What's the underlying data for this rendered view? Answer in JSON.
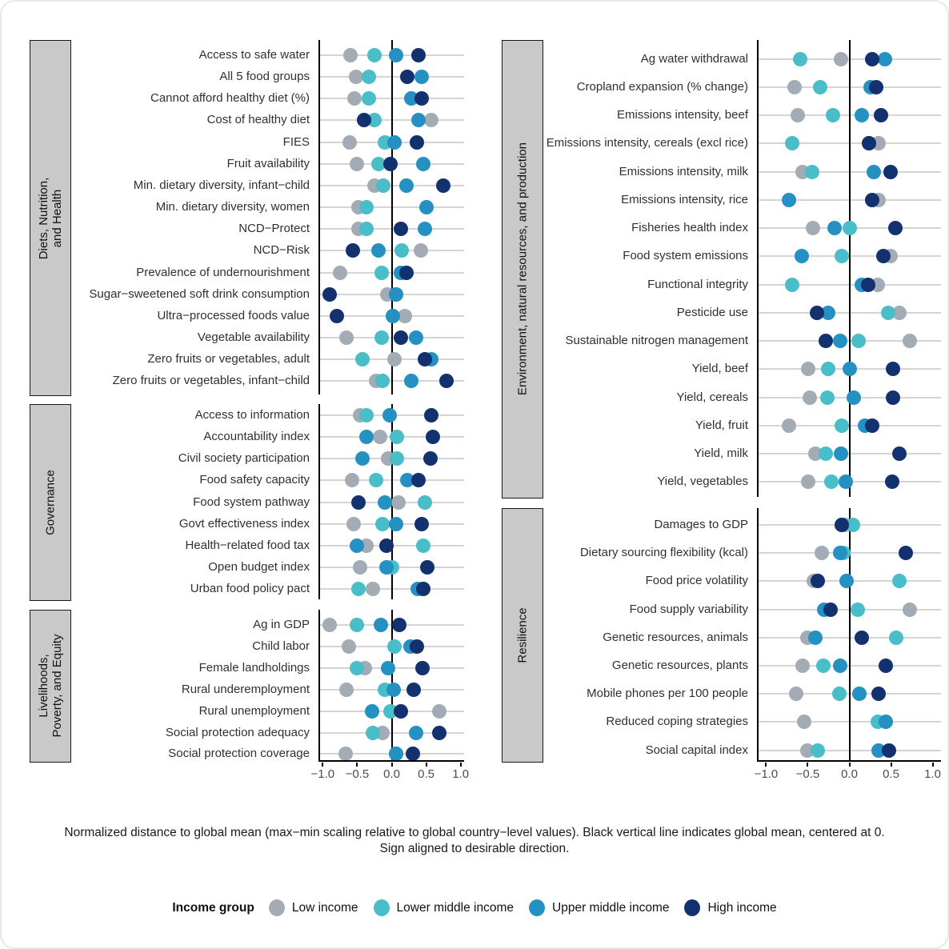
{
  "caption": {
    "line1": "Normalized distance to global mean (max−min scaling relative to global country−level values). Black vertical line indicates global mean, centered at 0.",
    "line2": "Sign aligned to desirable direction."
  },
  "legend": {
    "title": "Income group",
    "items": [
      {
        "key": "low",
        "label": "Low income",
        "color": "#a3abb4"
      },
      {
        "key": "lower_middle",
        "label": "Lower middle income",
        "color": "#49bdc8"
      },
      {
        "key": "upper_middle",
        "label": "Upper middle income",
        "color": "#2590c2"
      },
      {
        "key": "high",
        "label": "High income",
        "color": "#13316f"
      }
    ]
  },
  "series_order": [
    "low",
    "lower_middle",
    "upper_middle",
    "high"
  ],
  "axis": {
    "tick_values": [
      -1.0,
      -0.5,
      0.0,
      0.5,
      1.0
    ],
    "tick_labels": [
      "−1.0",
      "−0.5",
      "0.0",
      "0.5",
      "1.0"
    ]
  },
  "chart_data": {
    "type": "scatter",
    "subtype": "grouped-dot-plot",
    "x_domain": [
      -1.05,
      1.05
    ],
    "grid": "horizontal-row-lines",
    "zero_line": "black vertical at 0 per panel",
    "panels": [
      {
        "category_lines": [
          "Diets, Nutrition,",
          "and Health"
        ],
        "category": "Diets, Nutrition, and Health",
        "rows": [
          {
            "label": "Access to safe water",
            "low": -0.6,
            "lower_middle": -0.25,
            "upper_middle": 0.06,
            "high": 0.39
          },
          {
            "label": "All 5 food groups",
            "low": -0.52,
            "lower_middle": -0.33,
            "upper_middle": 0.44,
            "high": 0.23
          },
          {
            "label": "Cannot afford healthy diet (%)",
            "low": -0.54,
            "lower_middle": -0.33,
            "upper_middle": 0.29,
            "high": 0.44
          },
          {
            "label": "Cost of healthy diet",
            "low": 0.58,
            "lower_middle": -0.25,
            "upper_middle": 0.39,
            "high": -0.4
          },
          {
            "label": "FIES",
            "low": -0.61,
            "lower_middle": -0.1,
            "upper_middle": 0.04,
            "high": 0.37
          },
          {
            "label": "Fruit availability",
            "low": -0.5,
            "lower_middle": -0.19,
            "upper_middle": 0.46,
            "high": -0.02
          },
          {
            "label": "Min. dietary diversity, infant−child",
            "low": -0.25,
            "lower_middle": -0.12,
            "upper_middle": 0.21,
            "high": 0.75
          },
          {
            "label": "Min. dietary diversity, women",
            "low": -0.48,
            "lower_middle": -0.36,
            "upper_middle": 0.5,
            "high": null
          },
          {
            "label": "NCD−Protect",
            "low": -0.48,
            "lower_middle": -0.36,
            "upper_middle": 0.48,
            "high": 0.13
          },
          {
            "label": "NCD−Risk",
            "low": 0.42,
            "lower_middle": 0.15,
            "upper_middle": -0.19,
            "high": -0.56
          },
          {
            "label": "Prevalence of undernourishment",
            "low": -0.75,
            "lower_middle": -0.15,
            "upper_middle": 0.13,
            "high": 0.21
          },
          {
            "label": "Sugar−sweetened soft drink consumption",
            "low": -0.06,
            "lower_middle": 0.06,
            "upper_middle": 0.06,
            "high": -0.9
          },
          {
            "label": "Ultra−processed foods value",
            "low": 0.19,
            "lower_middle": 0.02,
            "upper_middle": 0.02,
            "high": -0.79
          },
          {
            "label": "Vegetable availability",
            "low": -0.65,
            "lower_middle": -0.15,
            "upper_middle": 0.35,
            "high": 0.13
          },
          {
            "label": "Zero fruits or vegetables, adult",
            "low": 0.04,
            "lower_middle": -0.42,
            "upper_middle": 0.57,
            "high": 0.48
          },
          {
            "label": "Zero fruits or vegetables, infant−child",
            "low": -0.23,
            "lower_middle": -0.13,
            "upper_middle": 0.29,
            "high": 0.79
          }
        ]
      },
      {
        "category_lines": [
          "Governance"
        ],
        "category": "Governance",
        "rows": [
          {
            "label": "Access to information",
            "low": -0.46,
            "lower_middle": -0.36,
            "upper_middle": -0.03,
            "high": 0.58
          },
          {
            "label": "Accountability index",
            "low": -0.17,
            "lower_middle": 0.08,
            "upper_middle": -0.36,
            "high": 0.6
          },
          {
            "label": "Civil society participation",
            "low": -0.05,
            "lower_middle": 0.08,
            "upper_middle": -0.42,
            "high": 0.56
          },
          {
            "label": "Food safety capacity",
            "low": -0.57,
            "lower_middle": -0.23,
            "upper_middle": 0.23,
            "high": 0.39
          },
          {
            "label": "Food system pathway",
            "low": 0.1,
            "lower_middle": 0.48,
            "upper_middle": -0.1,
            "high": -0.48
          },
          {
            "label": "Govt effectiveness index",
            "low": -0.55,
            "lower_middle": -0.13,
            "upper_middle": 0.06,
            "high": 0.44
          },
          {
            "label": "Health−related food tax",
            "low": -0.36,
            "lower_middle": 0.46,
            "upper_middle": -0.5,
            "high": -0.08
          },
          {
            "label": "Open budget index",
            "low": -0.46,
            "lower_middle": 0.01,
            "upper_middle": -0.08,
            "high": 0.52
          },
          {
            "label": "Urban food policy pact",
            "low": -0.27,
            "lower_middle": -0.48,
            "upper_middle": 0.38,
            "high": 0.46
          }
        ]
      },
      {
        "category_lines": [
          "Livelihoods,",
          "Poverty, and Equity"
        ],
        "category": "Livelihoods, Poverty, and Equity",
        "rows": [
          {
            "label": "Ag in GDP",
            "low": -0.9,
            "lower_middle": -0.51,
            "upper_middle": -0.16,
            "high": 0.11
          },
          {
            "label": "Child labor",
            "low": -0.62,
            "lower_middle": 0.04,
            "upper_middle": 0.27,
            "high": 0.37
          },
          {
            "label": "Female landholdings",
            "low": -0.39,
            "lower_middle": -0.51,
            "upper_middle": -0.05,
            "high": 0.45
          },
          {
            "label": "Rural underemployment",
            "low": -0.65,
            "lower_middle": -0.1,
            "upper_middle": 0.03,
            "high": 0.32
          },
          {
            "label": "Rural unemployment",
            "low": 0.69,
            "lower_middle": -0.02,
            "upper_middle": -0.29,
            "high": 0.13
          },
          {
            "label": "Social protection adequacy",
            "low": -0.13,
            "lower_middle": -0.27,
            "upper_middle": 0.35,
            "high": 0.69
          },
          {
            "label": "Social protection coverage",
            "low": -0.67,
            "lower_middle": 0.06,
            "upper_middle": 0.06,
            "high": 0.31
          }
        ]
      },
      {
        "category_lines": [
          "Environment, natural resources, and production"
        ],
        "category": "Environment, natural resources, and production",
        "rows": [
          {
            "label": "Ag water withdrawal",
            "low": -0.1,
            "lower_middle": -0.59,
            "upper_middle": 0.43,
            "high": 0.27
          },
          {
            "label": "Cropland expansion (% change)",
            "low": -0.66,
            "lower_middle": -0.35,
            "upper_middle": 0.25,
            "high": 0.32
          },
          {
            "label": "Emissions intensity, beef",
            "low": -0.62,
            "lower_middle": -0.2,
            "upper_middle": 0.15,
            "high": 0.38
          },
          {
            "label": "Emissions intensity, cereals (excl rice)",
            "low": 0.35,
            "lower_middle": -0.69,
            "upper_middle": 0.24,
            "high": 0.24
          },
          {
            "label": "Emissions intensity, milk",
            "low": -0.56,
            "lower_middle": -0.45,
            "upper_middle": 0.29,
            "high": 0.49
          },
          {
            "label": "Emissions intensity, rice",
            "low": 0.35,
            "lower_middle": 0.27,
            "upper_middle": -0.73,
            "high": 0.27
          },
          {
            "label": "Fisheries health index",
            "low": -0.44,
            "lower_middle": 0.0,
            "upper_middle": -0.18,
            "high": 0.55
          },
          {
            "label": "Food system emissions",
            "low": 0.49,
            "lower_middle": -0.09,
            "upper_middle": -0.57,
            "high": 0.41
          },
          {
            "label": "Functional integrity",
            "low": 0.34,
            "lower_middle": -0.69,
            "upper_middle": 0.15,
            "high": 0.23
          },
          {
            "label": "Pesticide use",
            "low": 0.6,
            "lower_middle": 0.47,
            "upper_middle": -0.25,
            "high": -0.39
          },
          {
            "label": "Sustainable nitrogen management",
            "low": 0.73,
            "lower_middle": 0.11,
            "upper_middle": -0.11,
            "high": -0.28
          },
          {
            "label": "Yield, beef",
            "low": -0.49,
            "lower_middle": -0.25,
            "upper_middle": 0.0,
            "high": 0.52
          },
          {
            "label": "Yield, cereals",
            "low": -0.48,
            "lower_middle": -0.26,
            "upper_middle": 0.05,
            "high": 0.52
          },
          {
            "label": "Yield, fruit",
            "low": -0.73,
            "lower_middle": -0.09,
            "upper_middle": 0.19,
            "high": 0.27
          },
          {
            "label": "Yield, milk",
            "low": -0.41,
            "lower_middle": -0.28,
            "upper_middle": -0.1,
            "high": 0.6
          },
          {
            "label": "Yield, vegetables",
            "low": -0.49,
            "lower_middle": -0.22,
            "upper_middle": -0.04,
            "high": 0.51
          }
        ]
      },
      {
        "category_lines": [
          "Resilience"
        ],
        "category": "Resilience",
        "rows": [
          {
            "label": "Damages to GDP",
            "low": -0.05,
            "lower_middle": 0.04,
            "upper_middle": -0.09,
            "high": -0.09
          },
          {
            "label": "Dietary sourcing flexibility (kcal)",
            "low": -0.33,
            "lower_middle": -0.07,
            "upper_middle": -0.11,
            "high": 0.68
          },
          {
            "label": "Food price volatility",
            "low": -0.43,
            "lower_middle": 0.6,
            "upper_middle": -0.03,
            "high": -0.38
          },
          {
            "label": "Food supply variability",
            "low": 0.73,
            "lower_middle": 0.1,
            "upper_middle": -0.3,
            "high": -0.23
          },
          {
            "label": "Genetic resources, animals",
            "low": -0.5,
            "lower_middle": 0.56,
            "upper_middle": -0.41,
            "high": 0.15
          },
          {
            "label": "Genetic resources, plants",
            "low": -0.56,
            "lower_middle": -0.31,
            "upper_middle": -0.11,
            "high": 0.44
          },
          {
            "label": "Mobile phones per 100 people",
            "low": -0.64,
            "lower_middle": -0.12,
            "upper_middle": 0.12,
            "high": 0.35
          },
          {
            "label": "Reduced coping strategies",
            "low": -0.54,
            "lower_middle": 0.34,
            "upper_middle": 0.44,
            "high": null
          },
          {
            "label": "Social capital index",
            "low": -0.5,
            "lower_middle": -0.38,
            "upper_middle": 0.35,
            "high": 0.48
          }
        ]
      }
    ]
  }
}
